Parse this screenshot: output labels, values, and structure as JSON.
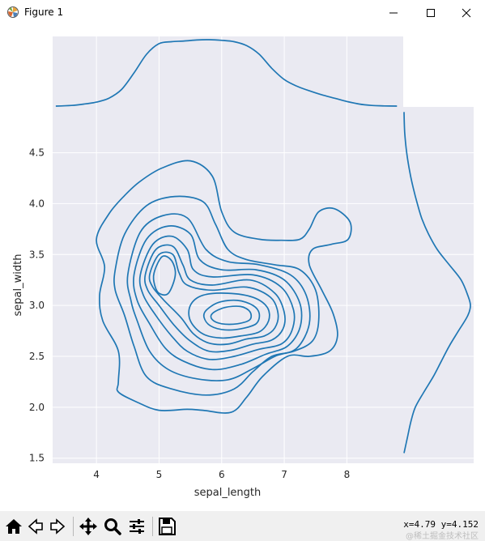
{
  "window": {
    "title": "Figure 1"
  },
  "chart_data": {
    "type": "kde_jointplot",
    "xlabel": "sepal_length",
    "ylabel": "sepal_width",
    "xlim": [
      3.3,
      8.9
    ],
    "ylim": [
      1.45,
      4.95
    ],
    "x_ticks": [
      "4",
      "5",
      "6",
      "7",
      "8"
    ],
    "x_tick_values": [
      4,
      5,
      6,
      7,
      8
    ],
    "y_ticks": [
      "1.5",
      "2.0",
      "2.5",
      "3.0",
      "3.5",
      "4.0",
      "4.5"
    ],
    "y_tick_values": [
      1.5,
      2.0,
      2.5,
      3.0,
      3.5,
      4.0,
      4.5
    ],
    "grid": true,
    "line_color": "#1f77b4",
    "background_color": "#eaeaf2",
    "marginal_x": {
      "x": [
        3.35,
        3.6,
        3.8,
        4.0,
        4.2,
        4.4,
        4.6,
        4.8,
        5.0,
        5.2,
        5.4,
        5.6,
        5.8,
        6.0,
        6.2,
        6.4,
        6.6,
        6.8,
        7.0,
        7.2,
        7.4,
        7.6,
        7.8,
        8.0,
        8.2,
        8.4,
        8.6,
        8.8
      ],
      "density": [
        0.0,
        0.01,
        0.03,
        0.06,
        0.12,
        0.25,
        0.5,
        0.78,
        0.94,
        0.97,
        0.98,
        0.995,
        1.0,
        0.99,
        0.97,
        0.91,
        0.78,
        0.57,
        0.4,
        0.3,
        0.23,
        0.17,
        0.12,
        0.07,
        0.03,
        0.01,
        0.003,
        0.0
      ]
    },
    "marginal_y": {
      "y": [
        1.55,
        1.7,
        1.85,
        2.0,
        2.15,
        2.3,
        2.45,
        2.6,
        2.75,
        2.9,
        3.0,
        3.1,
        3.25,
        3.4,
        3.55,
        3.7,
        3.85,
        4.0,
        4.15,
        4.3,
        4.5,
        4.7,
        4.9
      ],
      "density": [
        0.0,
        0.05,
        0.1,
        0.17,
        0.3,
        0.44,
        0.56,
        0.68,
        0.82,
        0.96,
        1.0,
        0.96,
        0.86,
        0.68,
        0.5,
        0.37,
        0.27,
        0.2,
        0.14,
        0.09,
        0.04,
        0.01,
        0.0
      ]
    },
    "contours": [
      [
        [
          4.13,
          3.38
        ],
        [
          4.0,
          3.65
        ],
        [
          4.2,
          3.9
        ],
        [
          4.45,
          4.08
        ],
        [
          4.7,
          4.22
        ],
        [
          5.05,
          4.35
        ],
        [
          5.5,
          4.42
        ],
        [
          5.85,
          4.27
        ],
        [
          6.0,
          3.92
        ],
        [
          6.2,
          3.72
        ],
        [
          6.6,
          3.65
        ],
        [
          6.95,
          3.64
        ],
        [
          7.25,
          3.65
        ],
        [
          7.4,
          3.75
        ],
        [
          7.55,
          3.92
        ],
        [
          7.8,
          3.95
        ],
        [
          8.05,
          3.82
        ],
        [
          8.02,
          3.65
        ],
        [
          7.75,
          3.6
        ],
        [
          7.45,
          3.55
        ],
        [
          7.4,
          3.4
        ],
        [
          7.6,
          3.15
        ],
        [
          7.78,
          2.92
        ],
        [
          7.85,
          2.7
        ],
        [
          7.72,
          2.55
        ],
        [
          7.4,
          2.5
        ],
        [
          7.05,
          2.5
        ],
        [
          6.65,
          2.3
        ],
        [
          6.4,
          2.1
        ],
        [
          6.15,
          1.95
        ],
        [
          5.7,
          1.97
        ],
        [
          5.45,
          1.98
        ],
        [
          5.0,
          1.97
        ],
        [
          4.65,
          2.05
        ],
        [
          4.35,
          2.15
        ],
        [
          4.35,
          2.25
        ],
        [
          4.35,
          2.55
        ],
        [
          4.1,
          2.85
        ],
        [
          4.05,
          3.1
        ]
      ],
      [
        [
          4.3,
          3.35
        ],
        [
          4.45,
          3.7
        ],
        [
          4.8,
          3.98
        ],
        [
          5.25,
          4.07
        ],
        [
          5.7,
          4.02
        ],
        [
          5.9,
          3.8
        ],
        [
          6.1,
          3.55
        ],
        [
          6.4,
          3.45
        ],
        [
          6.85,
          3.4
        ],
        [
          7.25,
          3.35
        ],
        [
          7.5,
          3.15
        ],
        [
          7.55,
          2.85
        ],
        [
          7.45,
          2.65
        ],
        [
          7.15,
          2.55
        ],
        [
          6.8,
          2.5
        ],
        [
          6.5,
          2.35
        ],
        [
          6.2,
          2.18
        ],
        [
          5.75,
          2.12
        ],
        [
          5.2,
          2.18
        ],
        [
          4.8,
          2.3
        ],
        [
          4.6,
          2.6
        ],
        [
          4.45,
          2.9
        ],
        [
          4.3,
          3.15
        ]
      ],
      [
        [
          4.5,
          3.3
        ],
        [
          4.7,
          3.72
        ],
        [
          5.05,
          3.88
        ],
        [
          5.45,
          3.86
        ],
        [
          5.75,
          3.55
        ],
        [
          6.1,
          3.43
        ],
        [
          6.6,
          3.4
        ],
        [
          7.1,
          3.3
        ],
        [
          7.35,
          3.1
        ],
        [
          7.4,
          2.82
        ],
        [
          7.2,
          2.58
        ],
        [
          6.85,
          2.5
        ],
        [
          6.5,
          2.38
        ],
        [
          6.1,
          2.27
        ],
        [
          5.6,
          2.28
        ],
        [
          5.15,
          2.37
        ],
        [
          4.85,
          2.55
        ],
        [
          4.65,
          2.85
        ],
        [
          4.55,
          3.05
        ]
      ],
      [
        [
          4.6,
          3.3
        ],
        [
          4.8,
          3.65
        ],
        [
          5.15,
          3.78
        ],
        [
          5.5,
          3.7
        ],
        [
          5.65,
          3.45
        ],
        [
          6.0,
          3.35
        ],
        [
          6.55,
          3.35
        ],
        [
          7.0,
          3.25
        ],
        [
          7.25,
          3.02
        ],
        [
          7.25,
          2.78
        ],
        [
          7.05,
          2.6
        ],
        [
          6.7,
          2.52
        ],
        [
          6.3,
          2.42
        ],
        [
          5.85,
          2.37
        ],
        [
          5.4,
          2.45
        ],
        [
          5.1,
          2.58
        ],
        [
          4.85,
          2.82
        ],
        [
          4.65,
          3.05
        ]
      ],
      [
        [
          4.7,
          3.3
        ],
        [
          4.9,
          3.6
        ],
        [
          5.2,
          3.68
        ],
        [
          5.45,
          3.55
        ],
        [
          5.55,
          3.35
        ],
        [
          5.85,
          3.28
        ],
        [
          6.5,
          3.3
        ],
        [
          6.95,
          3.18
        ],
        [
          7.15,
          2.95
        ],
        [
          7.12,
          2.75
        ],
        [
          6.95,
          2.62
        ],
        [
          6.6,
          2.57
        ],
        [
          6.2,
          2.5
        ],
        [
          5.8,
          2.47
        ],
        [
          5.45,
          2.55
        ],
        [
          5.2,
          2.7
        ],
        [
          4.95,
          2.9
        ],
        [
          4.75,
          3.1
        ]
      ],
      [
        [
          4.78,
          3.3
        ],
        [
          4.95,
          3.55
        ],
        [
          5.22,
          3.58
        ],
        [
          5.38,
          3.4
        ],
        [
          5.5,
          3.25
        ],
        [
          5.85,
          3.2
        ],
        [
          6.45,
          3.25
        ],
        [
          6.85,
          3.12
        ],
        [
          7.0,
          2.93
        ],
        [
          6.98,
          2.77
        ],
        [
          6.8,
          2.66
        ],
        [
          6.5,
          2.62
        ],
        [
          6.15,
          2.56
        ],
        [
          5.8,
          2.55
        ],
        [
          5.5,
          2.65
        ],
        [
          5.25,
          2.8
        ],
        [
          5.0,
          3.0
        ],
        [
          4.82,
          3.15
        ]
      ],
      [
        [
          4.85,
          3.3
        ],
        [
          5.0,
          3.5
        ],
        [
          5.22,
          3.5
        ],
        [
          5.32,
          3.32
        ],
        [
          5.45,
          3.2
        ],
        [
          5.85,
          3.15
        ],
        [
          6.4,
          3.18
        ],
        [
          6.78,
          3.08
        ],
        [
          6.9,
          2.92
        ],
        [
          6.85,
          2.78
        ],
        [
          6.68,
          2.7
        ],
        [
          6.4,
          2.67
        ],
        [
          6.1,
          2.62
        ],
        [
          5.8,
          2.63
        ],
        [
          5.55,
          2.72
        ],
        [
          5.35,
          2.88
        ],
        [
          5.08,
          3.05
        ],
        [
          4.9,
          3.18
        ]
      ],
      [
        [
          4.92,
          3.32
        ],
        [
          5.05,
          3.48
        ],
        [
          5.2,
          3.44
        ],
        [
          5.26,
          3.3
        ],
        [
          5.15,
          3.12
        ],
        [
          5.0,
          3.12
        ],
        [
          4.93,
          3.2
        ]
      ],
      [
        [
          5.5,
          3.0
        ],
        [
          5.7,
          3.1
        ],
        [
          6.1,
          3.12
        ],
        [
          6.5,
          3.08
        ],
        [
          6.73,
          2.98
        ],
        [
          6.75,
          2.85
        ],
        [
          6.6,
          2.74
        ],
        [
          6.3,
          2.7
        ],
        [
          6.0,
          2.68
        ],
        [
          5.7,
          2.72
        ],
        [
          5.5,
          2.85
        ]
      ],
      [
        [
          5.75,
          2.95
        ],
        [
          5.95,
          3.03
        ],
        [
          6.25,
          3.05
        ],
        [
          6.5,
          3.0
        ],
        [
          6.6,
          2.92
        ],
        [
          6.55,
          2.82
        ],
        [
          6.3,
          2.77
        ],
        [
          6.05,
          2.76
        ],
        [
          5.82,
          2.8
        ],
        [
          5.72,
          2.88
        ]
      ],
      [
        [
          5.85,
          2.92
        ],
        [
          6.05,
          2.98
        ],
        [
          6.3,
          2.99
        ],
        [
          6.45,
          2.94
        ],
        [
          6.45,
          2.86
        ],
        [
          6.25,
          2.82
        ],
        [
          6.0,
          2.82
        ],
        [
          5.85,
          2.86
        ]
      ]
    ]
  },
  "toolbar": {
    "coords_text": "x=4.79 y=4.152",
    "watermark_text": "@稀土掘金技术社区"
  }
}
